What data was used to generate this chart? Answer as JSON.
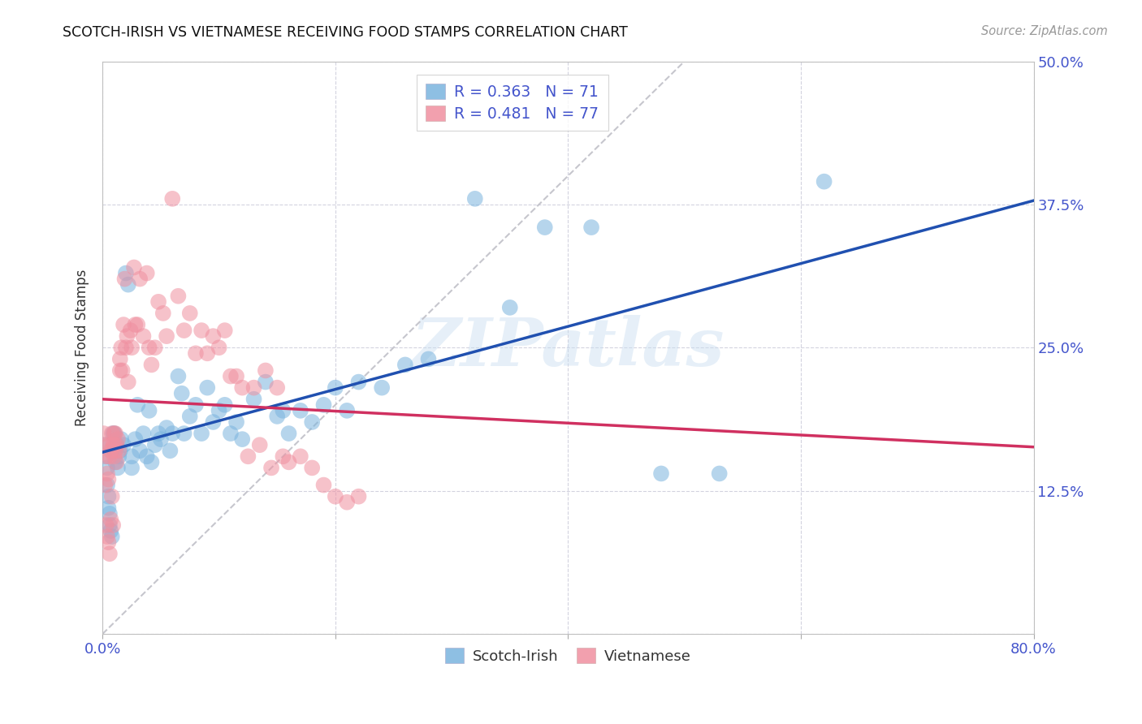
{
  "title": "SCOTCH-IRISH VS VIETNAMESE RECEIVING FOOD STAMPS CORRELATION CHART",
  "source": "Source: ZipAtlas.com",
  "ylabel": "Receiving Food Stamps",
  "xlim": [
    0.0,
    0.8
  ],
  "ylim": [
    0.0,
    0.5
  ],
  "xticks": [
    0.0,
    0.2,
    0.4,
    0.6,
    0.8
  ],
  "xticklabels": [
    "0.0%",
    "",
    "",
    "",
    "80.0%"
  ],
  "yticks": [
    0.0,
    0.125,
    0.25,
    0.375,
    0.5
  ],
  "yticklabels": [
    "",
    "12.5%",
    "25.0%",
    "37.5%",
    "50.0%"
  ],
  "scotch_irish_color": "#7ab4de",
  "vietnamese_color": "#f090a0",
  "trend_scotch_color": "#2050b0",
  "trend_viet_color": "#d03060",
  "diagonal_color": "#c0c0c8",
  "legend_R_scotch": "R = 0.363",
  "legend_N_scotch": "N = 71",
  "legend_R_viet": "R = 0.481",
  "legend_N_viet": "N = 77",
  "watermark": "ZIPatlas",
  "scotch_irish_x": [
    0.002,
    0.003,
    0.004,
    0.004,
    0.005,
    0.005,
    0.006,
    0.006,
    0.007,
    0.008,
    0.009,
    0.01,
    0.01,
    0.011,
    0.012,
    0.013,
    0.014,
    0.015,
    0.016,
    0.018,
    0.02,
    0.022,
    0.025,
    0.025,
    0.028,
    0.03,
    0.032,
    0.035,
    0.038,
    0.04,
    0.042,
    0.045,
    0.048,
    0.05,
    0.055,
    0.058,
    0.06,
    0.065,
    0.068,
    0.07,
    0.075,
    0.08,
    0.085,
    0.09,
    0.095,
    0.1,
    0.105,
    0.11,
    0.115,
    0.12,
    0.13,
    0.14,
    0.15,
    0.155,
    0.16,
    0.17,
    0.18,
    0.19,
    0.2,
    0.21,
    0.22,
    0.24,
    0.26,
    0.28,
    0.32,
    0.35,
    0.38,
    0.42,
    0.48,
    0.53,
    0.62
  ],
  "scotch_irish_y": [
    0.165,
    0.155,
    0.145,
    0.13,
    0.12,
    0.11,
    0.105,
    0.095,
    0.09,
    0.085,
    0.175,
    0.16,
    0.175,
    0.15,
    0.165,
    0.145,
    0.155,
    0.16,
    0.17,
    0.165,
    0.315,
    0.305,
    0.155,
    0.145,
    0.17,
    0.2,
    0.16,
    0.175,
    0.155,
    0.195,
    0.15,
    0.165,
    0.175,
    0.17,
    0.18,
    0.16,
    0.175,
    0.225,
    0.21,
    0.175,
    0.19,
    0.2,
    0.175,
    0.215,
    0.185,
    0.195,
    0.2,
    0.175,
    0.185,
    0.17,
    0.205,
    0.22,
    0.19,
    0.195,
    0.175,
    0.195,
    0.185,
    0.2,
    0.215,
    0.195,
    0.22,
    0.215,
    0.235,
    0.24,
    0.38,
    0.285,
    0.355,
    0.355,
    0.14,
    0.14,
    0.395
  ],
  "vietnamese_x": [
    0.001,
    0.002,
    0.002,
    0.003,
    0.003,
    0.004,
    0.004,
    0.005,
    0.005,
    0.006,
    0.006,
    0.006,
    0.007,
    0.007,
    0.008,
    0.008,
    0.009,
    0.009,
    0.01,
    0.01,
    0.01,
    0.011,
    0.011,
    0.012,
    0.012,
    0.013,
    0.014,
    0.015,
    0.015,
    0.016,
    0.017,
    0.018,
    0.019,
    0.02,
    0.021,
    0.022,
    0.024,
    0.025,
    0.027,
    0.028,
    0.03,
    0.032,
    0.035,
    0.038,
    0.04,
    0.042,
    0.045,
    0.048,
    0.052,
    0.055,
    0.06,
    0.065,
    0.07,
    0.075,
    0.08,
    0.085,
    0.09,
    0.095,
    0.1,
    0.105,
    0.11,
    0.115,
    0.12,
    0.125,
    0.13,
    0.135,
    0.14,
    0.145,
    0.15,
    0.155,
    0.16,
    0.17,
    0.18,
    0.19,
    0.2,
    0.21,
    0.22
  ],
  "vietnamese_y": [
    0.175,
    0.165,
    0.13,
    0.155,
    0.095,
    0.14,
    0.085,
    0.135,
    0.08,
    0.165,
    0.155,
    0.07,
    0.16,
    0.1,
    0.175,
    0.12,
    0.165,
    0.095,
    0.175,
    0.165,
    0.155,
    0.175,
    0.16,
    0.165,
    0.15,
    0.17,
    0.16,
    0.24,
    0.23,
    0.25,
    0.23,
    0.27,
    0.31,
    0.25,
    0.26,
    0.22,
    0.265,
    0.25,
    0.32,
    0.27,
    0.27,
    0.31,
    0.26,
    0.315,
    0.25,
    0.235,
    0.25,
    0.29,
    0.28,
    0.26,
    0.38,
    0.295,
    0.265,
    0.28,
    0.245,
    0.265,
    0.245,
    0.26,
    0.25,
    0.265,
    0.225,
    0.225,
    0.215,
    0.155,
    0.215,
    0.165,
    0.23,
    0.145,
    0.215,
    0.155,
    0.15,
    0.155,
    0.145,
    0.13,
    0.12,
    0.115,
    0.12
  ]
}
